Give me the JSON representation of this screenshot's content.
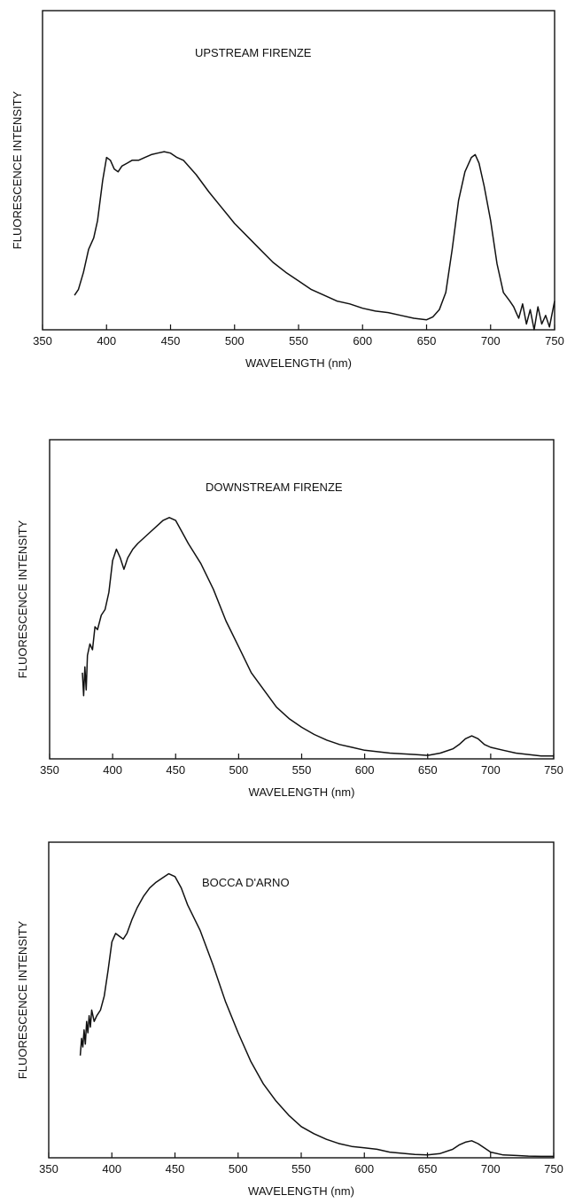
{
  "chart_data": [
    {
      "type": "line",
      "title": "UPSTREAM FIRENZE",
      "xlabel": "WAVELENGTH (nm)",
      "ylabel": "FLUORESCENCE INTENSITY",
      "xlim": [
        350,
        750
      ],
      "ylim": [
        0,
        1
      ],
      "xticks": [
        350,
        400,
        450,
        500,
        550,
        600,
        650,
        700,
        750
      ],
      "yticks_labeled": false,
      "grid": false,
      "series": [
        {
          "x": [
            375,
            378,
            382,
            386,
            390,
            393,
            397,
            400,
            403,
            406,
            409,
            412,
            416,
            420,
            425,
            430,
            435,
            440,
            445,
            450,
            455,
            460,
            465,
            470,
            480,
            490,
            500,
            510,
            520,
            530,
            540,
            550,
            560,
            570,
            580,
            590,
            600,
            610,
            620,
            630,
            640,
            650,
            655,
            660,
            665,
            670,
            675,
            680,
            685,
            688,
            691,
            695,
            700,
            705,
            710,
            715,
            718,
            720,
            722,
            725,
            728,
            731,
            734,
            737,
            740,
            743,
            746,
            750
          ],
          "values": [
            0.12,
            0.14,
            0.2,
            0.28,
            0.32,
            0.38,
            0.52,
            0.6,
            0.59,
            0.56,
            0.55,
            0.57,
            0.58,
            0.59,
            0.59,
            0.6,
            0.61,
            0.615,
            0.62,
            0.615,
            0.6,
            0.59,
            0.565,
            0.54,
            0.48,
            0.425,
            0.37,
            0.325,
            0.28,
            0.235,
            0.2,
            0.17,
            0.14,
            0.12,
            0.1,
            0.09,
            0.075,
            0.065,
            0.06,
            0.05,
            0.04,
            0.035,
            0.045,
            0.07,
            0.13,
            0.28,
            0.45,
            0.55,
            0.6,
            0.61,
            0.58,
            0.5,
            0.38,
            0.23,
            0.13,
            0.1,
            0.08,
            0.06,
            0.04,
            0.09,
            0.02,
            0.07,
            0.0,
            0.08,
            0.02,
            0.05,
            0.01,
            0.1
          ]
        }
      ]
    },
    {
      "type": "line",
      "title": "DOWNSTREAM FIRENZE",
      "xlabel": "WAVELENGTH (nm)",
      "ylabel": "FLUORESCENCE INTENSITY",
      "xlim": [
        350,
        750
      ],
      "ylim": [
        0,
        1
      ],
      "xticks": [
        350,
        400,
        450,
        500,
        550,
        600,
        650,
        700,
        750
      ],
      "yticks_labeled": false,
      "grid": false,
      "series": [
        {
          "x": [
            376,
            377,
            378,
            379,
            380,
            382,
            384,
            386,
            388,
            391,
            394,
            397,
            400,
            403,
            406,
            409,
            412,
            416,
            420,
            425,
            430,
            435,
            440,
            445,
            450,
            455,
            460,
            470,
            480,
            490,
            500,
            510,
            520,
            530,
            540,
            550,
            560,
            570,
            580,
            590,
            600,
            620,
            640,
            650,
            660,
            670,
            675,
            680,
            685,
            690,
            695,
            700,
            710,
            720,
            730,
            740,
            750
          ],
          "values": [
            0.3,
            0.22,
            0.32,
            0.24,
            0.36,
            0.4,
            0.38,
            0.46,
            0.45,
            0.5,
            0.52,
            0.58,
            0.69,
            0.73,
            0.7,
            0.66,
            0.7,
            0.73,
            0.75,
            0.77,
            0.79,
            0.81,
            0.83,
            0.84,
            0.83,
            0.79,
            0.75,
            0.68,
            0.59,
            0.48,
            0.39,
            0.3,
            0.24,
            0.18,
            0.14,
            0.11,
            0.085,
            0.065,
            0.05,
            0.04,
            0.03,
            0.02,
            0.015,
            0.012,
            0.02,
            0.035,
            0.05,
            0.07,
            0.08,
            0.07,
            0.05,
            0.04,
            0.03,
            0.02,
            0.015,
            0.01,
            0.01
          ]
        }
      ]
    },
    {
      "type": "line",
      "title": "BOCCA D'ARNO",
      "xlabel": "WAVELENGTH (nm)",
      "ylabel": "FLUORESCENCE INTENSITY",
      "xlim": [
        350,
        750
      ],
      "ylim": [
        0,
        1
      ],
      "xticks": [
        350,
        400,
        450,
        500,
        550,
        600,
        650,
        700,
        750
      ],
      "yticks_labeled": false,
      "grid": false,
      "series": [
        {
          "x": [
            375,
            376,
            377,
            378,
            379,
            380,
            381,
            382,
            383,
            384,
            386,
            388,
            391,
            394,
            397,
            400,
            403,
            406,
            409,
            412,
            416,
            420,
            425,
            430,
            435,
            440,
            445,
            450,
            455,
            460,
            470,
            480,
            490,
            500,
            510,
            520,
            530,
            540,
            550,
            560,
            570,
            580,
            590,
            600,
            610,
            620,
            640,
            650,
            660,
            670,
            675,
            680,
            685,
            690,
            695,
            700,
            710,
            720,
            730,
            740,
            750
          ],
          "values": [
            0.36,
            0.42,
            0.39,
            0.45,
            0.4,
            0.48,
            0.44,
            0.5,
            0.46,
            0.52,
            0.48,
            0.5,
            0.52,
            0.57,
            0.66,
            0.76,
            0.79,
            0.78,
            0.77,
            0.79,
            0.84,
            0.88,
            0.92,
            0.95,
            0.97,
            0.985,
            1.0,
            0.99,
            0.95,
            0.89,
            0.8,
            0.68,
            0.55,
            0.44,
            0.34,
            0.26,
            0.2,
            0.15,
            0.11,
            0.085,
            0.065,
            0.05,
            0.04,
            0.035,
            0.03,
            0.02,
            0.012,
            0.01,
            0.015,
            0.03,
            0.045,
            0.055,
            0.06,
            0.05,
            0.035,
            0.02,
            0.01,
            0.008,
            0.006,
            0.005,
            0.005
          ]
        }
      ]
    }
  ]
}
